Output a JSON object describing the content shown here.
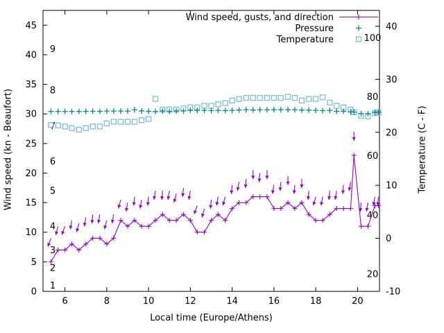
{
  "chart": {
    "xlabel": "Local time (Europe/Athens)",
    "ylabel_left": "Wind speed (kn - Beaufort)",
    "ylabel_right": "Temperature (C - F)",
    "legend": [
      {
        "label": "Wind speed, gusts, and direction",
        "color": "#9400d3",
        "marker": "line-plus"
      },
      {
        "label": "Pressure",
        "color": "#008b8b",
        "marker": "plus"
      },
      {
        "label": "Temperature",
        "color": "#79bde0",
        "marker": "open-square"
      }
    ],
    "x_ticks": [
      6,
      8,
      10,
      12,
      14,
      16,
      18,
      20
    ],
    "y_left_ticks": [
      0,
      5,
      10,
      15,
      20,
      25,
      30,
      35,
      40,
      45
    ],
    "y_right_ticks": [
      -10,
      0,
      10,
      20,
      30,
      40
    ],
    "beaufort_labels": [
      {
        "label": "1",
        "kn": 1
      },
      {
        "label": "2",
        "kn": 4
      },
      {
        "label": "3",
        "kn": 7
      },
      {
        "label": "4",
        "kn": 11
      },
      {
        "label": "5",
        "kn": 17
      },
      {
        "label": "6",
        "kn": 22
      },
      {
        "label": "7",
        "kn": 28
      },
      {
        "label": "8",
        "kn": 34
      },
      {
        "label": "9",
        "kn": 41
      }
    ],
    "fahrenheit_labels": [
      {
        "label": "20",
        "c": -6.7
      },
      {
        "label": "40",
        "c": 4.4
      },
      {
        "label": "60",
        "c": 15.6
      },
      {
        "label": "80",
        "c": 26.7
      },
      {
        "label": "100",
        "c": 37.8
      }
    ]
  },
  "chart_data": {
    "type": "line",
    "title": "",
    "xlabel": "Local time (Europe/Athens)",
    "ylabel": "Wind speed (kn - Beaufort)",
    "y2label": "Temperature (C - F)",
    "xlim": [
      4.95,
      21.05
    ],
    "ylim": [
      0,
      47.5
    ],
    "y2lim": [
      -10,
      43
    ],
    "grid": false,
    "legend_position": "top-right-inside",
    "x": [
      5.33,
      5.67,
      6.0,
      6.33,
      6.67,
      7.0,
      7.33,
      7.67,
      8.0,
      8.33,
      8.67,
      9.0,
      9.33,
      9.67,
      10.0,
      10.33,
      10.67,
      11.0,
      11.33,
      11.67,
      12.0,
      12.33,
      12.67,
      13.0,
      13.33,
      13.67,
      14.0,
      14.33,
      14.67,
      15.0,
      15.33,
      15.67,
      16.0,
      16.33,
      16.67,
      17.0,
      17.33,
      17.67,
      18.0,
      18.33,
      18.67,
      19.0,
      19.33,
      19.67,
      19.83,
      20.17,
      20.5,
      20.83,
      21.0
    ],
    "series": [
      {
        "name": "Wind speed",
        "axis": "left",
        "units": "kn",
        "color": "#9400d3",
        "marker": "plus-line",
        "values": [
          5,
          7,
          7,
          8,
          7,
          8,
          9,
          9,
          8,
          9,
          12,
          11,
          12,
          11,
          11,
          12,
          13,
          12,
          12,
          13,
          12,
          10,
          10,
          12,
          13,
          12,
          14,
          15,
          15,
          16,
          16,
          16,
          14,
          14,
          15,
          14,
          15,
          13,
          12,
          12,
          13,
          14,
          14,
          14,
          23,
          11,
          11,
          14.5,
          14.5
        ]
      },
      {
        "name": "Wind gusts",
        "axis": "left",
        "units": "kn",
        "color": "#9400d3",
        "marker": "direction-arrow",
        "values": [
          9,
          11,
          11,
          12,
          11.5,
          12.5,
          13,
          13,
          12,
          13,
          15.5,
          15,
          16,
          15.5,
          16,
          17,
          17,
          17,
          16.5,
          17.5,
          17,
          14.5,
          14,
          15.5,
          16,
          16,
          18,
          18.5,
          19,
          20.5,
          20,
          20.5,
          18,
          18.5,
          19.5,
          18,
          19,
          17,
          16,
          16,
          17,
          17,
          18,
          18.5,
          27,
          15,
          15,
          16,
          16
        ]
      },
      {
        "name": "Wind direction",
        "axis": "none",
        "units": "arrow-heading-deg-180-is-down",
        "color": "#9400d3",
        "values": [
          200,
          195,
          200,
          190,
          195,
          190,
          185,
          190,
          195,
          190,
          195,
          190,
          185,
          190,
          185,
          190,
          185,
          190,
          195,
          185,
          190,
          200,
          195,
          185,
          190,
          195,
          185,
          190,
          185,
          180,
          185,
          180,
          190,
          185,
          180,
          185,
          180,
          185,
          195,
          190,
          185,
          190,
          185,
          190,
          180,
          185,
          190,
          190,
          185
        ]
      },
      {
        "name": "Pressure",
        "axis": "left",
        "units": "inHg-on-left-scale",
        "color": "#008b8b",
        "marker": "plus",
        "values": [
          30.42,
          30.42,
          30.42,
          30.42,
          30.42,
          30.45,
          30.45,
          30.45,
          30.48,
          30.48,
          30.48,
          30.48,
          30.7,
          30.5,
          30.45,
          30.4,
          30.5,
          30.4,
          30.5,
          30.5,
          30.6,
          30.6,
          30.6,
          30.55,
          30.6,
          30.55,
          30.6,
          30.65,
          30.7,
          30.65,
          30.7,
          30.7,
          30.72,
          30.72,
          30.72,
          30.7,
          30.65,
          30.65,
          30.6,
          30.55,
          30.6,
          30.45,
          30.45,
          30.35,
          30.3,
          30.05,
          30.05,
          30.25,
          30.3
        ]
      },
      {
        "name": "Temperature",
        "axis": "right",
        "units": "C",
        "color": "#79bde0",
        "marker": "open-square",
        "values": [
          21.4,
          21.3,
          21.1,
          20.8,
          20.5,
          20.8,
          21.1,
          21.1,
          21.7,
          22.0,
          22.0,
          22.0,
          22.0,
          22.3,
          22.5,
          26.3,
          24.3,
          24.3,
          24.3,
          24.5,
          24.7,
          24.7,
          25.0,
          25.0,
          25.3,
          25.5,
          26.0,
          26.3,
          26.5,
          26.5,
          26.5,
          26.5,
          26.5,
          26.5,
          26.7,
          26.5,
          26.0,
          26.3,
          26.3,
          26.6,
          25.6,
          25.0,
          24.7,
          24.3,
          23.8,
          23.1,
          23.0,
          23.6,
          23.8
        ]
      }
    ]
  }
}
